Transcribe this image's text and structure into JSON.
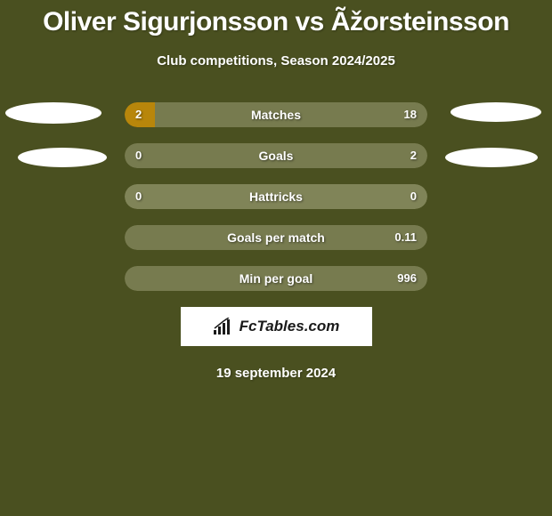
{
  "title": "Oliver Sigurjonsson vs Ãžorsteinsson",
  "subtitle": "Club competitions, Season 2024/2025",
  "date": "19 september 2024",
  "logo_text": "FcTables.com",
  "colors": {
    "background": "#4a5020",
    "bar_left": "#b8860b",
    "bar_right": "#777b4f",
    "bar_neutral": "#808458",
    "ellipse": "#ffffff",
    "text": "#ffffff"
  },
  "stats": [
    {
      "label": "Matches",
      "left_value": "2",
      "right_value": "18",
      "left_pct": 10,
      "right_pct": 90,
      "left_color": "#b8860b",
      "right_color": "#777b4f"
    },
    {
      "label": "Goals",
      "left_value": "0",
      "right_value": "2",
      "left_pct": 0,
      "right_pct": 100,
      "left_color": "#b8860b",
      "right_color": "#777b4f"
    },
    {
      "label": "Hattricks",
      "left_value": "0",
      "right_value": "0",
      "left_pct": 0,
      "right_pct": 0,
      "neutral": true,
      "neutral_color": "#808458"
    },
    {
      "label": "Goals per match",
      "left_value": "",
      "right_value": "0.11",
      "left_pct": 0,
      "right_pct": 100,
      "left_color": "#b8860b",
      "right_color": "#777b4f"
    },
    {
      "label": "Min per goal",
      "left_value": "",
      "right_value": "996",
      "left_pct": 0,
      "right_pct": 100,
      "left_color": "#b8860b",
      "right_color": "#777b4f"
    }
  ]
}
